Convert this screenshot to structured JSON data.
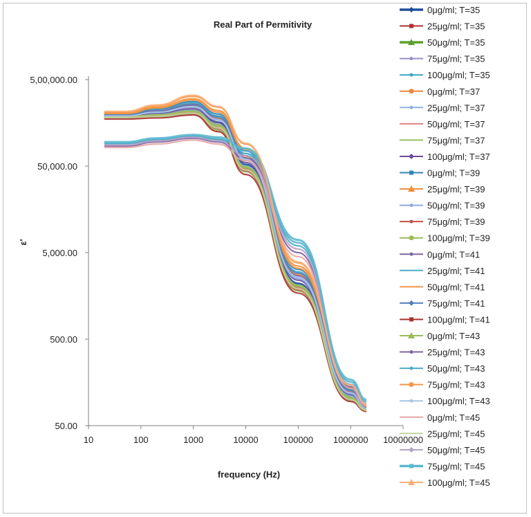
{
  "chart_data": {
    "type": "line",
    "title": "Real Part of Permitivity",
    "xlabel": "frequency (Hz)",
    "ylabel": "ε'",
    "x_scale": "log",
    "y_scale": "log",
    "xlim": [
      10,
      10000000
    ],
    "ylim": [
      50,
      500000
    ],
    "x_ticks": [
      "10",
      "100",
      "1000",
      "10000",
      "100000",
      "1000000",
      "10000000"
    ],
    "y_ticks": [
      "50.00",
      "500.00",
      "5,000.00",
      "50,000.00",
      "5,00,000.00"
    ],
    "grid": false,
    "legend_position": "right",
    "series": [
      {
        "name": "0μg/ml; T=35",
        "color": "#1f4e9c",
        "marker": "diamond",
        "bold": true,
        "x": [
          20,
          50,
          200,
          1000,
          3000,
          10000,
          100000,
          1000000,
          2000000
        ],
        "y": [
          190000,
          190000,
          210000,
          250000,
          160000,
          52000,
          2200,
          110,
          75
        ]
      },
      {
        "name": "25μg/ml; T=35",
        "color": "#b03030",
        "marker": "square",
        "x": [
          20,
          50,
          200,
          1000,
          3000,
          10000,
          100000,
          1000000,
          2000000
        ],
        "y": [
          180000,
          180000,
          190000,
          210000,
          140000,
          45000,
          1900,
          100,
          75
        ]
      },
      {
        "name": "50μg/ml; T=35",
        "color": "#5aa02c",
        "marker": "triangle",
        "bold": true,
        "x": [
          20,
          50,
          200,
          1000,
          3000,
          10000,
          100000,
          1000000,
          2000000
        ],
        "y": [
          185000,
          185000,
          200000,
          220000,
          150000,
          47000,
          2000,
          105,
          75
        ]
      },
      {
        "name": "75μg/ml; T=35",
        "color": "#9b8ec7",
        "marker": "x",
        "x": [
          20,
          50,
          200,
          1000,
          3000,
          10000,
          100000,
          1000000,
          2000000
        ],
        "y": [
          190000,
          190000,
          210000,
          240000,
          170000,
          60000,
          2600,
          120,
          80
        ]
      },
      {
        "name": "100μg/ml; T=35",
        "color": "#3aa6c4",
        "marker": "x",
        "x": [
          20,
          50,
          200,
          1000,
          3000,
          10000,
          100000,
          1000000,
          2000000
        ],
        "y": [
          200000,
          200000,
          230000,
          270000,
          190000,
          70000,
          3000,
          130,
          80
        ]
      },
      {
        "name": "0μg/ml; T=37",
        "color": "#e8883a",
        "marker": "circle",
        "x": [
          20,
          50,
          200,
          1000,
          3000,
          10000,
          100000,
          1000000,
          2000000
        ],
        "y": [
          195000,
          195000,
          220000,
          260000,
          180000,
          65000,
          2800,
          125,
          80
        ]
      },
      {
        "name": "25μg/ml; T=37",
        "color": "#8fb4e0",
        "marker": "plus",
        "x": [
          20,
          50,
          200,
          1000,
          3000,
          10000,
          100000,
          1000000,
          2000000
        ],
        "y": [
          185000,
          185000,
          200000,
          220000,
          150000,
          50000,
          2100,
          110,
          75
        ]
      },
      {
        "name": "50μg/ml; T=37",
        "color": "#e08080",
        "marker": "dash",
        "x": [
          20,
          50,
          200,
          1000,
          3000,
          10000,
          100000,
          1000000,
          2000000
        ],
        "y": [
          180000,
          180000,
          190000,
          210000,
          140000,
          46000,
          1950,
          100,
          75
        ]
      },
      {
        "name": "75μg/ml; T=37",
        "color": "#98c060",
        "marker": "dash",
        "x": [
          20,
          50,
          200,
          1000,
          3000,
          10000,
          100000,
          1000000,
          2000000
        ],
        "y": [
          180000,
          180000,
          185000,
          200000,
          130000,
          43000,
          1800,
          98,
          74
        ]
      },
      {
        "name": "100μg/ml; T=37",
        "color": "#6a4e9c",
        "marker": "diamond",
        "x": [
          20,
          50,
          200,
          1000,
          3000,
          10000,
          100000,
          1000000,
          2000000
        ],
        "y": [
          190000,
          190000,
          205000,
          230000,
          160000,
          55000,
          2400,
          115,
          78
        ]
      },
      {
        "name": "0μg/ml; T=39",
        "color": "#2c87b8",
        "marker": "square",
        "x": [
          20,
          50,
          200,
          1000,
          3000,
          10000,
          100000,
          1000000,
          2000000
        ],
        "y": [
          200000,
          200000,
          230000,
          280000,
          200000,
          75000,
          3200,
          135,
          82
        ]
      },
      {
        "name": "25μg/ml; T=39",
        "color": "#ef8f3a",
        "marker": "triangle",
        "x": [
          20,
          50,
          200,
          1000,
          3000,
          10000,
          100000,
          1000000,
          2000000
        ],
        "y": [
          205000,
          205000,
          240000,
          300000,
          220000,
          80000,
          3500,
          140,
          85
        ]
      },
      {
        "name": "50μg/ml; T=39",
        "color": "#8faadc",
        "marker": "x",
        "x": [
          20,
          50,
          200,
          1000,
          3000,
          10000,
          100000,
          1000000,
          2000000
        ],
        "y": [
          190000,
          190000,
          210000,
          240000,
          170000,
          58000,
          2500,
          118,
          78
        ]
      },
      {
        "name": "75μg/ml; T=39",
        "color": "#c0504d",
        "marker": "x",
        "x": [
          20,
          50,
          200,
          1000,
          3000,
          10000,
          100000,
          1000000,
          2000000
        ],
        "y": [
          180000,
          180000,
          190000,
          205000,
          135000,
          44000,
          1850,
          100,
          74
        ]
      },
      {
        "name": "100μg/ml; T=39",
        "color": "#9bbb59",
        "marker": "circle",
        "x": [
          20,
          50,
          200,
          1000,
          3000,
          10000,
          100000,
          1000000,
          2000000
        ],
        "y": [
          185000,
          185000,
          195000,
          215000,
          145000,
          48000,
          2050,
          105,
          75
        ]
      },
      {
        "name": "0μg/ml; T=41",
        "color": "#8064a2",
        "marker": "plus",
        "x": [
          20,
          50,
          200,
          1000,
          3000,
          10000,
          100000,
          1000000,
          2000000
        ],
        "y": [
          195000,
          195000,
          215000,
          250000,
          175000,
          62000,
          2700,
          122,
          79
        ]
      },
      {
        "name": "25μg/ml; T=41",
        "color": "#4bacc6",
        "marker": "dash",
        "x": [
          20,
          50,
          200,
          1000,
          3000,
          10000,
          100000,
          1000000,
          2000000
        ],
        "y": [
          90000,
          90000,
          100000,
          110000,
          100000,
          70000,
          6000,
          150,
          90
        ]
      },
      {
        "name": "50μg/ml; T=41",
        "color": "#f79646",
        "marker": "dash",
        "x": [
          20,
          50,
          200,
          1000,
          3000,
          10000,
          100000,
          1000000,
          2000000
        ],
        "y": [
          200000,
          200000,
          235000,
          290000,
          210000,
          78000,
          3300,
          138,
          83
        ]
      },
      {
        "name": "75μg/ml; T=41",
        "color": "#4f81bd",
        "marker": "diamond",
        "x": [
          20,
          50,
          200,
          1000,
          3000,
          10000,
          100000,
          1000000,
          2000000
        ],
        "y": [
          195000,
          195000,
          220000,
          260000,
          185000,
          66000,
          2900,
          128,
          80
        ]
      },
      {
        "name": "100μg/ml; T=41",
        "color": "#a83232",
        "marker": "square",
        "x": [
          20,
          50,
          200,
          1000,
          3000,
          10000,
          100000,
          1000000,
          2000000
        ],
        "y": [
          175000,
          175000,
          180000,
          195000,
          125000,
          40000,
          1700,
          95,
          73
        ]
      },
      {
        "name": "0μg/ml; T=43",
        "color": "#9bbb59",
        "marker": "triangle",
        "x": [
          20,
          50,
          200,
          1000,
          3000,
          10000,
          100000,
          1000000,
          2000000
        ],
        "y": [
          185000,
          185000,
          195000,
          215000,
          148000,
          49000,
          2100,
          106,
          76
        ]
      },
      {
        "name": "25μg/ml; T=43",
        "color": "#8064a2",
        "marker": "x",
        "x": [
          20,
          50,
          200,
          1000,
          3000,
          10000,
          100000,
          1000000,
          2000000
        ],
        "y": [
          85000,
          85000,
          95000,
          105000,
          95000,
          62000,
          5000,
          140,
          88
        ]
      },
      {
        "name": "50μg/ml; T=43",
        "color": "#4bacc6",
        "marker": "x",
        "x": [
          20,
          50,
          200,
          1000,
          3000,
          10000,
          100000,
          1000000,
          2000000
        ],
        "y": [
          92000,
          92000,
          102000,
          112000,
          103000,
          75000,
          6500,
          160,
          95
        ]
      },
      {
        "name": "75μg/ml; T=43",
        "color": "#f79646",
        "marker": "circle",
        "x": [
          20,
          50,
          200,
          1000,
          3000,
          10000,
          100000,
          1000000,
          2000000
        ],
        "y": [
          210000,
          210000,
          250000,
          320000,
          240000,
          90000,
          3800,
          145,
          86
        ]
      },
      {
        "name": "100μg/ml; T=43",
        "color": "#a9c4e6",
        "marker": "plus",
        "x": [
          20,
          50,
          200,
          1000,
          3000,
          10000,
          100000,
          1000000,
          2000000
        ],
        "y": [
          190000,
          190000,
          210000,
          245000,
          172000,
          60000,
          2600,
          120,
          79
        ]
      },
      {
        "name": "0μg/ml; T=45",
        "color": "#e6a5a4",
        "marker": "dash",
        "x": [
          20,
          50,
          200,
          1000,
          3000,
          10000,
          100000,
          1000000,
          2000000
        ],
        "y": [
          82000,
          82000,
          90000,
          100000,
          90000,
          58000,
          4500,
          135,
          86
        ]
      },
      {
        "name": "25μg/ml; T=45",
        "color": "#c3d69b",
        "marker": "dash",
        "x": [
          20,
          50,
          200,
          1000,
          3000,
          10000,
          100000,
          1000000,
          2000000
        ],
        "y": [
          182000,
          182000,
          188000,
          205000,
          138000,
          45000,
          1900,
          100,
          75
        ]
      },
      {
        "name": "50μg/ml; T=45",
        "color": "#b3a2c7",
        "marker": "diamond",
        "x": [
          20,
          50,
          200,
          1000,
          3000,
          10000,
          100000,
          1000000,
          2000000
        ],
        "y": [
          88000,
          88000,
          98000,
          108000,
          98000,
          66000,
          5500,
          145,
          90
        ]
      },
      {
        "name": "75μg/ml; T=45",
        "color": "#5bb8d0",
        "marker": "square",
        "bold": true,
        "x": [
          20,
          50,
          200,
          1000,
          3000,
          10000,
          100000,
          1000000,
          2000000
        ],
        "y": [
          95000,
          95000,
          105000,
          115000,
          108000,
          80000,
          7000,
          170,
          100
        ]
      },
      {
        "name": "100μg/ml; T=45",
        "color": "#f9b07a",
        "marker": "triangle",
        "x": [
          20,
          50,
          200,
          1000,
          3000,
          10000,
          100000,
          1000000,
          2000000
        ],
        "y": [
          215000,
          215000,
          255000,
          330000,
          245000,
          92000,
          3900,
          148,
          88
        ]
      }
    ]
  }
}
